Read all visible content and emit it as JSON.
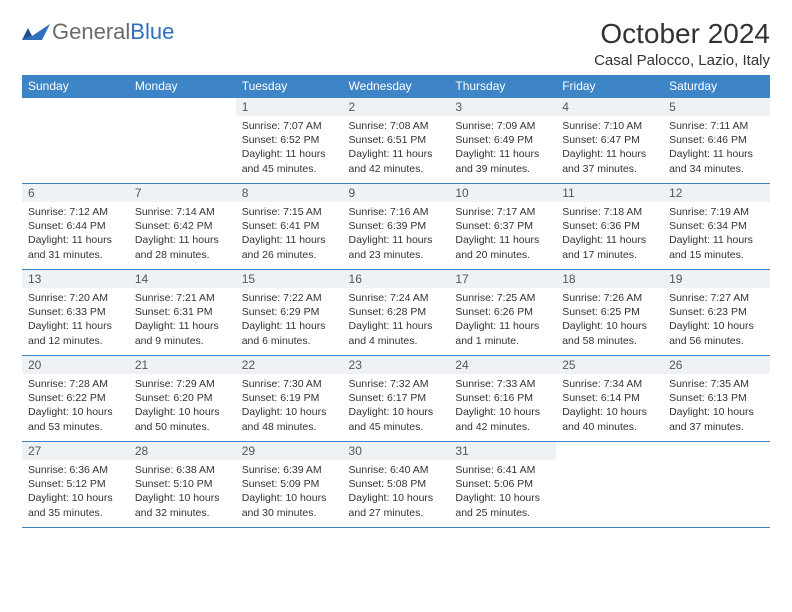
{
  "logo": {
    "word1": "General",
    "word2": "Blue"
  },
  "title": "October 2024",
  "location": "Casal Palocco, Lazio, Italy",
  "colors": {
    "header_bg": "#3d85c6",
    "header_fg": "#ffffff",
    "rule": "#3d85c6",
    "daynum_bg": "#eef2f5",
    "logo_gray": "#6b6b6b",
    "logo_blue": "#2f6fbf"
  },
  "day_names": [
    "Sunday",
    "Monday",
    "Tuesday",
    "Wednesday",
    "Thursday",
    "Friday",
    "Saturday"
  ],
  "first_weekday_index": 2,
  "days": [
    {
      "n": 1,
      "sunrise": "7:07 AM",
      "sunset": "6:52 PM",
      "daylight": "11 hours and 45 minutes."
    },
    {
      "n": 2,
      "sunrise": "7:08 AM",
      "sunset": "6:51 PM",
      "daylight": "11 hours and 42 minutes."
    },
    {
      "n": 3,
      "sunrise": "7:09 AM",
      "sunset": "6:49 PM",
      "daylight": "11 hours and 39 minutes."
    },
    {
      "n": 4,
      "sunrise": "7:10 AM",
      "sunset": "6:47 PM",
      "daylight": "11 hours and 37 minutes."
    },
    {
      "n": 5,
      "sunrise": "7:11 AM",
      "sunset": "6:46 PM",
      "daylight": "11 hours and 34 minutes."
    },
    {
      "n": 6,
      "sunrise": "7:12 AM",
      "sunset": "6:44 PM",
      "daylight": "11 hours and 31 minutes."
    },
    {
      "n": 7,
      "sunrise": "7:14 AM",
      "sunset": "6:42 PM",
      "daylight": "11 hours and 28 minutes."
    },
    {
      "n": 8,
      "sunrise": "7:15 AM",
      "sunset": "6:41 PM",
      "daylight": "11 hours and 26 minutes."
    },
    {
      "n": 9,
      "sunrise": "7:16 AM",
      "sunset": "6:39 PM",
      "daylight": "11 hours and 23 minutes."
    },
    {
      "n": 10,
      "sunrise": "7:17 AM",
      "sunset": "6:37 PM",
      "daylight": "11 hours and 20 minutes."
    },
    {
      "n": 11,
      "sunrise": "7:18 AM",
      "sunset": "6:36 PM",
      "daylight": "11 hours and 17 minutes."
    },
    {
      "n": 12,
      "sunrise": "7:19 AM",
      "sunset": "6:34 PM",
      "daylight": "11 hours and 15 minutes."
    },
    {
      "n": 13,
      "sunrise": "7:20 AM",
      "sunset": "6:33 PM",
      "daylight": "11 hours and 12 minutes."
    },
    {
      "n": 14,
      "sunrise": "7:21 AM",
      "sunset": "6:31 PM",
      "daylight": "11 hours and 9 minutes."
    },
    {
      "n": 15,
      "sunrise": "7:22 AM",
      "sunset": "6:29 PM",
      "daylight": "11 hours and 6 minutes."
    },
    {
      "n": 16,
      "sunrise": "7:24 AM",
      "sunset": "6:28 PM",
      "daylight": "11 hours and 4 minutes."
    },
    {
      "n": 17,
      "sunrise": "7:25 AM",
      "sunset": "6:26 PM",
      "daylight": "11 hours and 1 minute."
    },
    {
      "n": 18,
      "sunrise": "7:26 AM",
      "sunset": "6:25 PM",
      "daylight": "10 hours and 58 minutes."
    },
    {
      "n": 19,
      "sunrise": "7:27 AM",
      "sunset": "6:23 PM",
      "daylight": "10 hours and 56 minutes."
    },
    {
      "n": 20,
      "sunrise": "7:28 AM",
      "sunset": "6:22 PM",
      "daylight": "10 hours and 53 minutes."
    },
    {
      "n": 21,
      "sunrise": "7:29 AM",
      "sunset": "6:20 PM",
      "daylight": "10 hours and 50 minutes."
    },
    {
      "n": 22,
      "sunrise": "7:30 AM",
      "sunset": "6:19 PM",
      "daylight": "10 hours and 48 minutes."
    },
    {
      "n": 23,
      "sunrise": "7:32 AM",
      "sunset": "6:17 PM",
      "daylight": "10 hours and 45 minutes."
    },
    {
      "n": 24,
      "sunrise": "7:33 AM",
      "sunset": "6:16 PM",
      "daylight": "10 hours and 42 minutes."
    },
    {
      "n": 25,
      "sunrise": "7:34 AM",
      "sunset": "6:14 PM",
      "daylight": "10 hours and 40 minutes."
    },
    {
      "n": 26,
      "sunrise": "7:35 AM",
      "sunset": "6:13 PM",
      "daylight": "10 hours and 37 minutes."
    },
    {
      "n": 27,
      "sunrise": "6:36 AM",
      "sunset": "5:12 PM",
      "daylight": "10 hours and 35 minutes."
    },
    {
      "n": 28,
      "sunrise": "6:38 AM",
      "sunset": "5:10 PM",
      "daylight": "10 hours and 32 minutes."
    },
    {
      "n": 29,
      "sunrise": "6:39 AM",
      "sunset": "5:09 PM",
      "daylight": "10 hours and 30 minutes."
    },
    {
      "n": 30,
      "sunrise": "6:40 AM",
      "sunset": "5:08 PM",
      "daylight": "10 hours and 27 minutes."
    },
    {
      "n": 31,
      "sunrise": "6:41 AM",
      "sunset": "5:06 PM",
      "daylight": "10 hours and 25 minutes."
    }
  ],
  "labels": {
    "sunrise": "Sunrise:",
    "sunset": "Sunset:",
    "daylight": "Daylight:"
  }
}
